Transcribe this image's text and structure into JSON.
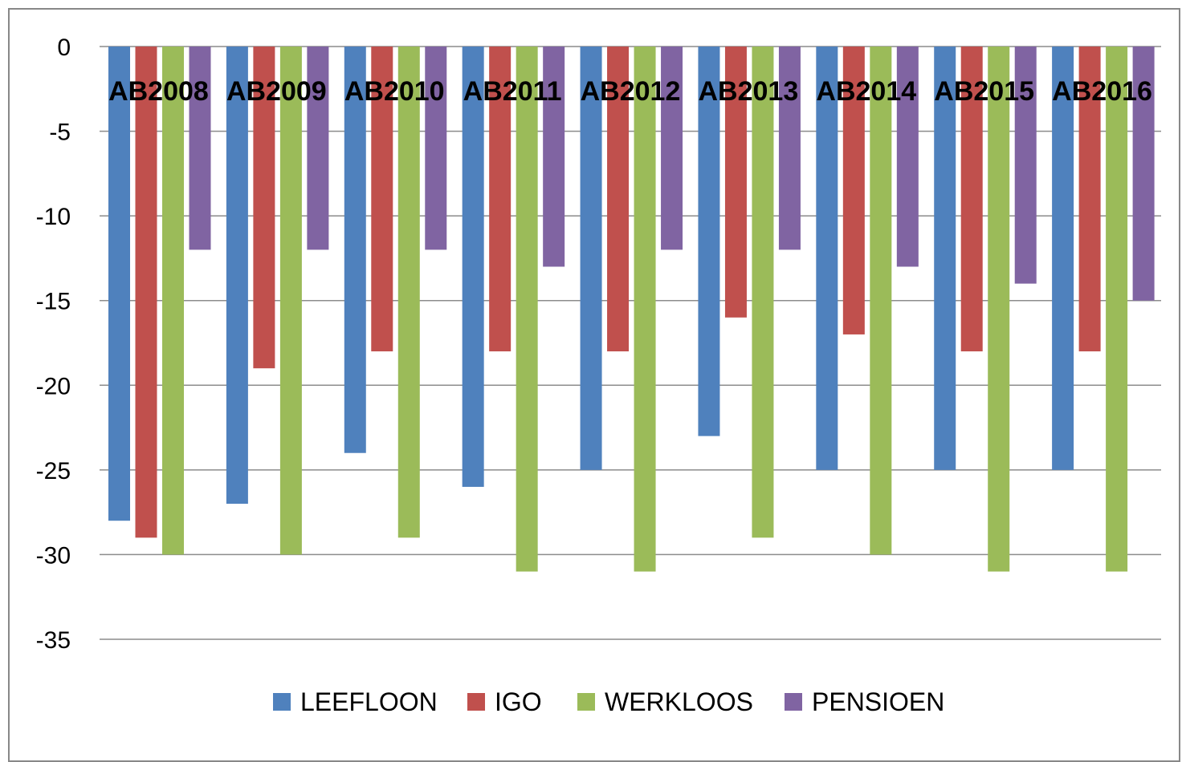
{
  "chart_data": {
    "type": "bar",
    "categories": [
      "AB2008",
      "AB2009",
      "AB2010",
      "AB2011",
      "AB2012",
      "AB2013",
      "AB2014",
      "AB2015",
      "AB2016"
    ],
    "series": [
      {
        "name": "LEEFLOON",
        "color": "#4f81bd",
        "values": [
          -28,
          -27,
          -24,
          -26,
          -25,
          -23,
          -25,
          -25,
          -25
        ]
      },
      {
        "name": "IGO",
        "color": "#c0504d",
        "values": [
          -29,
          -19,
          -18,
          -18,
          -18,
          -16,
          -17,
          -18,
          -18
        ]
      },
      {
        "name": "WERKLOOS",
        "color": "#9bbb59",
        "values": [
          -30,
          -30,
          -29,
          -31,
          -31,
          -29,
          -30,
          -31,
          -31
        ]
      },
      {
        "name": "PENSIOEN",
        "color": "#8064a2",
        "values": [
          -12,
          -12,
          -12,
          -13,
          -12,
          -12,
          -13,
          -14,
          -15
        ]
      }
    ],
    "yticks": [
      0,
      -5,
      -10,
      -15,
      -20,
      -25,
      -30,
      -35
    ],
    "ylim": [
      -35,
      0
    ],
    "grid": true,
    "legend_position": "bottom",
    "category_labels_position": "top"
  }
}
